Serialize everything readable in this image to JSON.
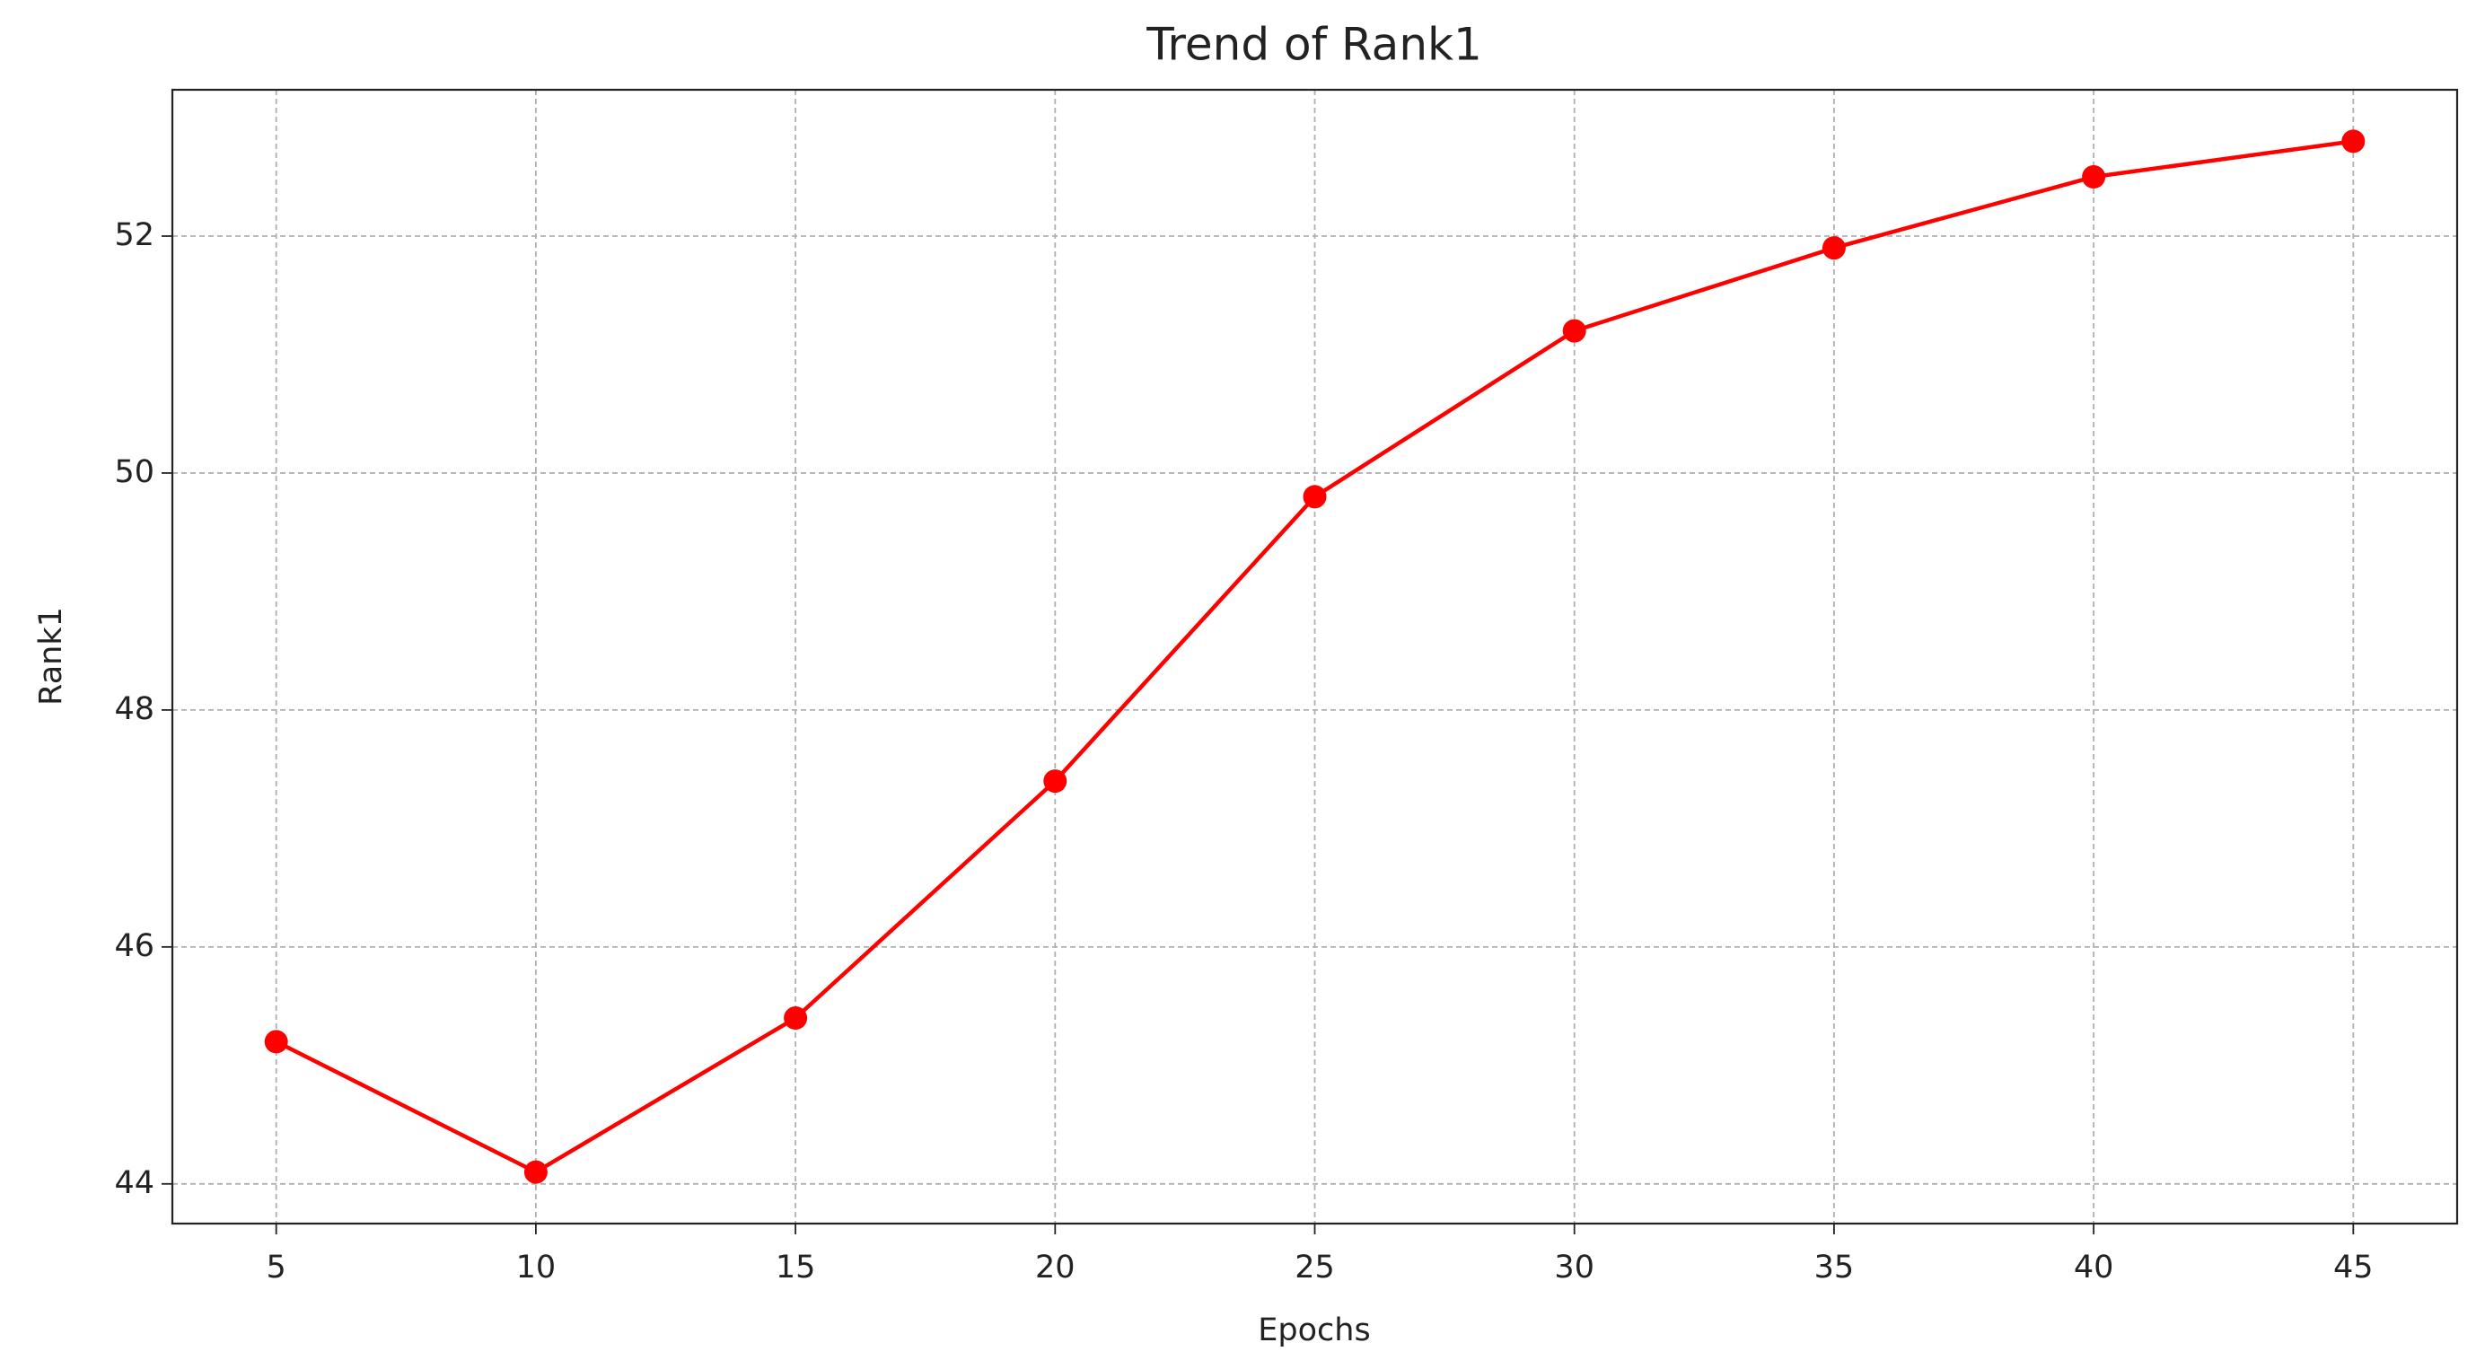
{
  "chart_data": {
    "type": "line",
    "title": "Trend of Rank1",
    "xlabel": "Epochs",
    "ylabel": "Rank1",
    "x": [
      5,
      10,
      15,
      20,
      25,
      30,
      35,
      40,
      45
    ],
    "values": [
      45.2,
      44.1,
      45.4,
      47.4,
      49.8,
      51.2,
      51.9,
      52.5,
      52.8
    ],
    "color": "#ff0000",
    "marker": "o",
    "xlim": [
      3,
      47
    ],
    "xticks": [
      5,
      10,
      15,
      20,
      25,
      30,
      35,
      40,
      45
    ],
    "ylim": [
      43.665,
      53.235
    ],
    "yticks": [
      44,
      46,
      48,
      50,
      52
    ],
    "grid": true
  }
}
